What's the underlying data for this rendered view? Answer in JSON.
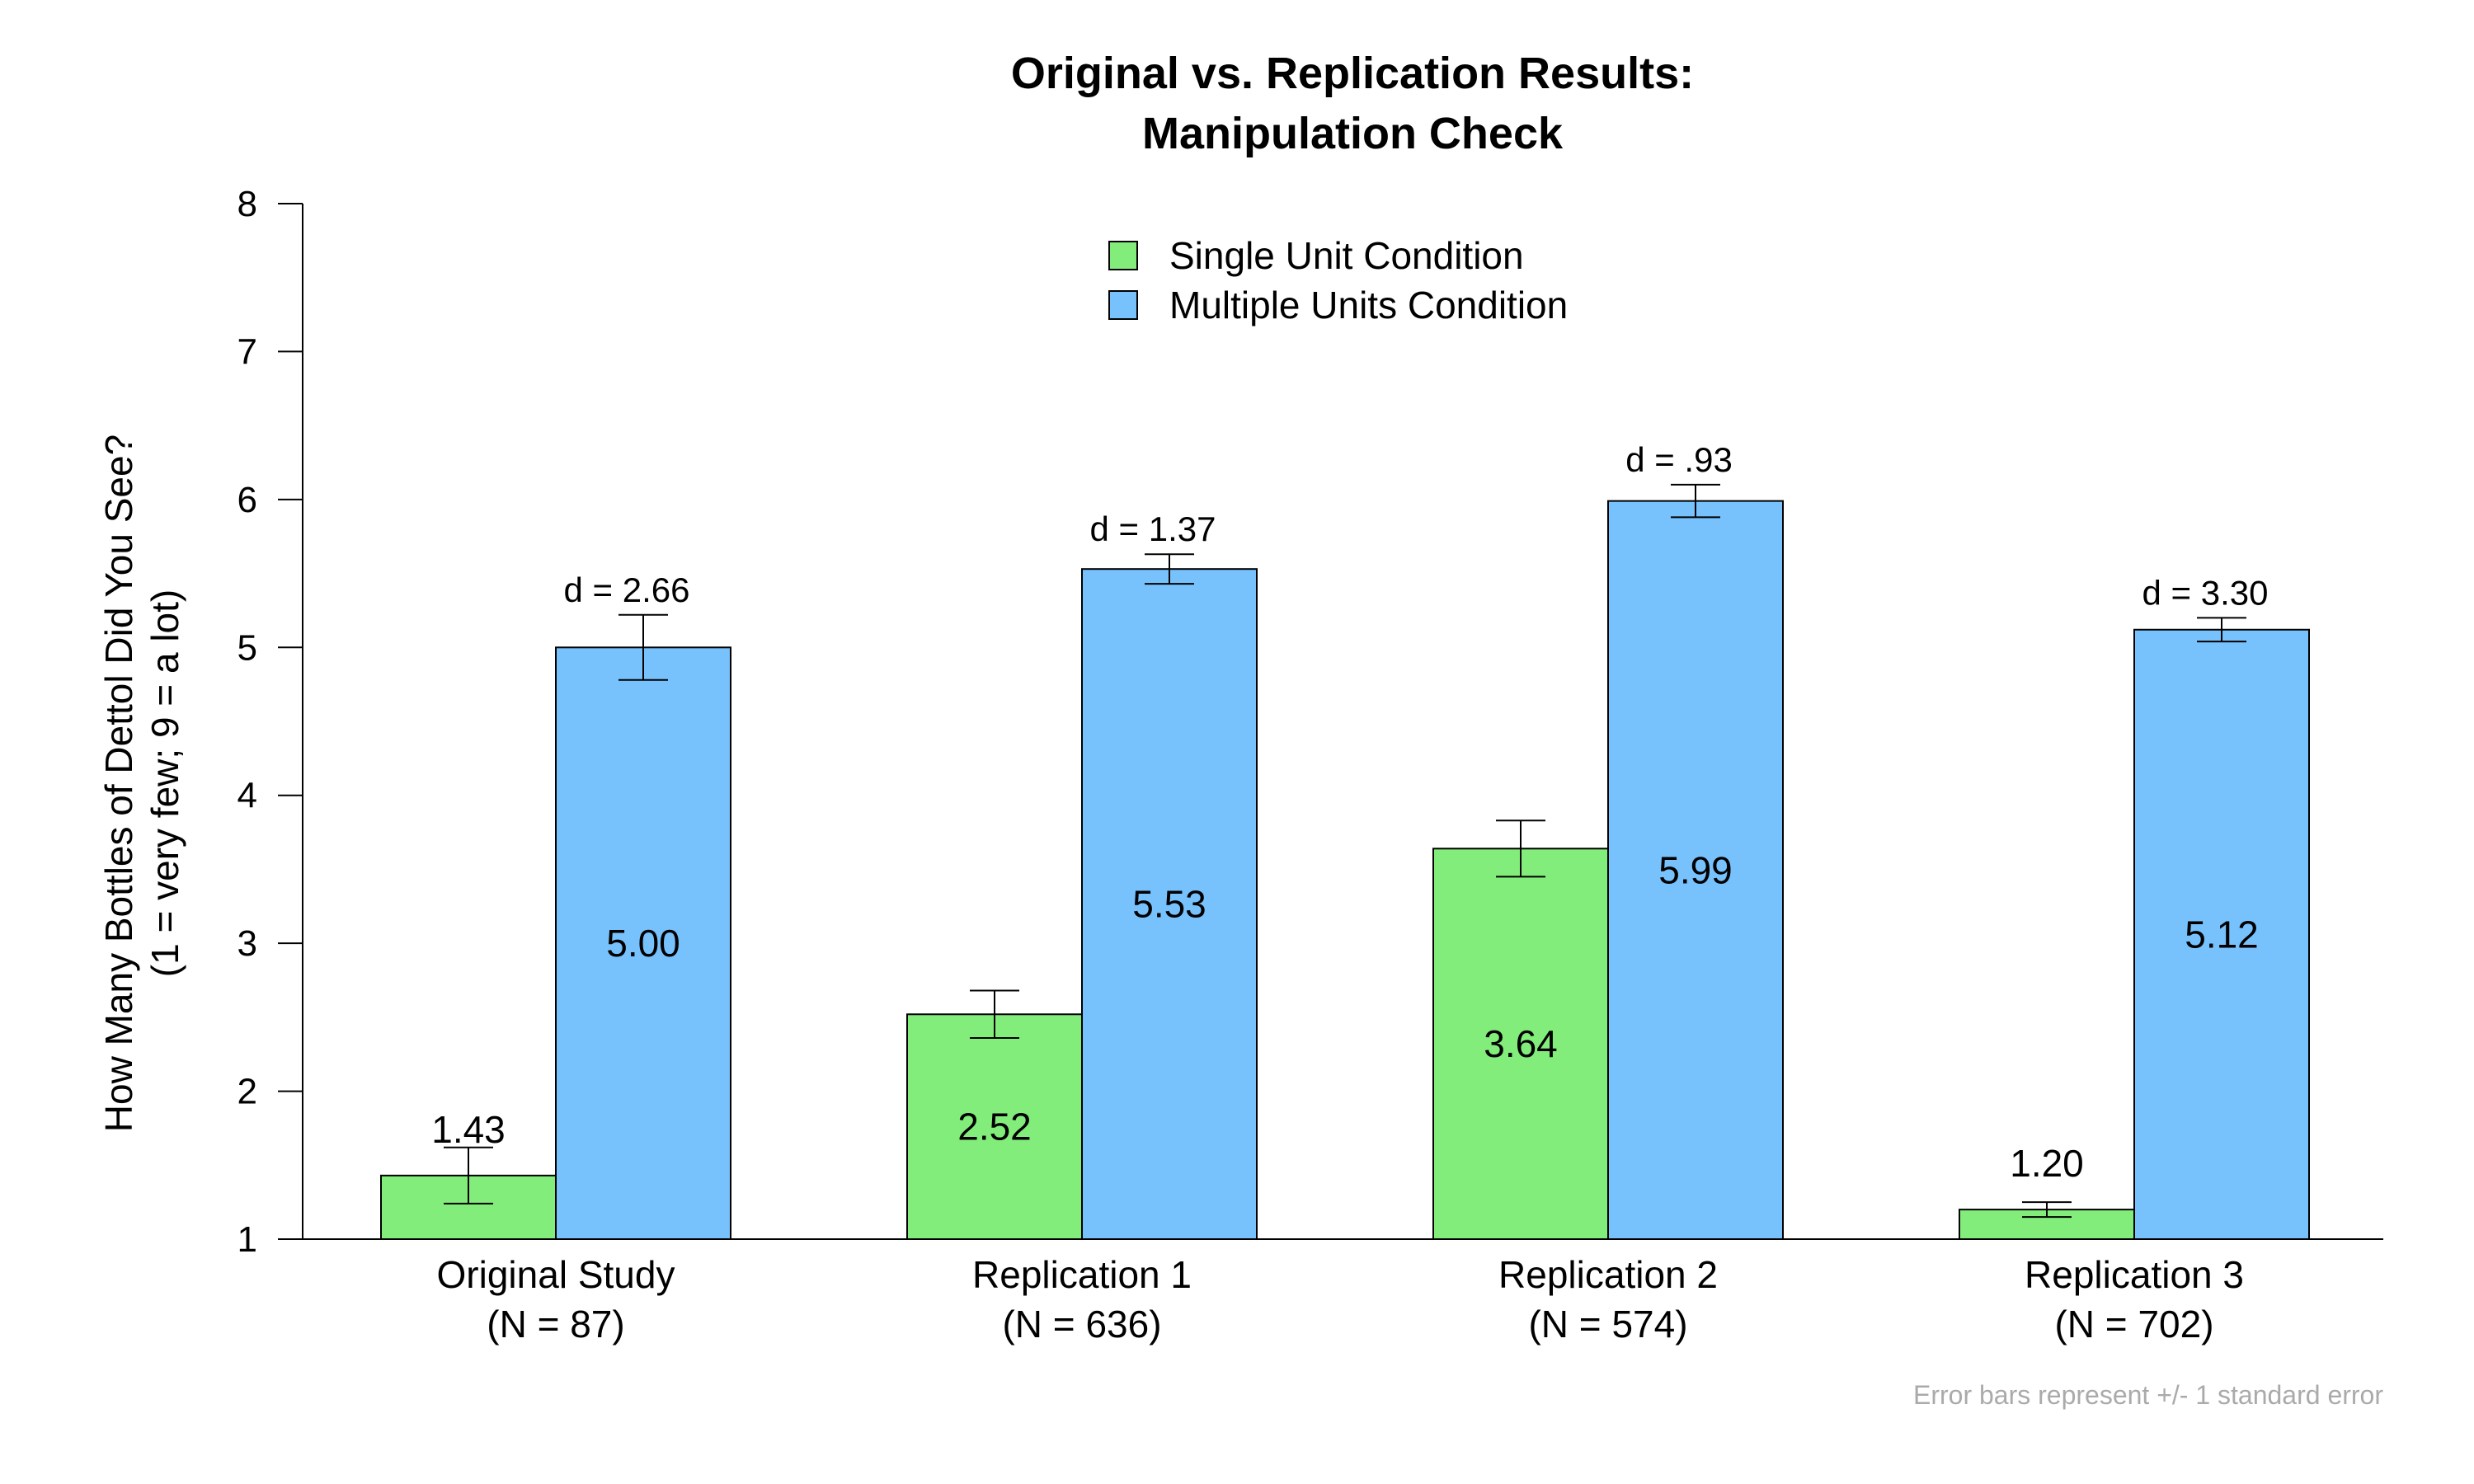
{
  "chart_data": {
    "type": "bar",
    "title": [
      "Original vs. Replication Results:",
      "Manipulation Check"
    ],
    "ylabel": [
      "How Many Bottles of Dettol Did You See?",
      "(1 = very few; 9 = a lot)"
    ],
    "xlabel": "",
    "ylim": [
      1,
      8
    ],
    "yticks": [
      1,
      2,
      3,
      4,
      5,
      6,
      7,
      8
    ],
    "grid": false,
    "legend_position": "top-center",
    "categories": [
      {
        "name": "Original Study",
        "n": "(N = 87)"
      },
      {
        "name": "Replication 1",
        "n": "(N = 636)"
      },
      {
        "name": "Replication 2",
        "n": "(N = 574)"
      },
      {
        "name": "Replication 3",
        "n": "(N = 702)"
      }
    ],
    "series": [
      {
        "name": "Single Unit Condition",
        "color": "#82ed7b",
        "values": [
          1.43,
          2.52,
          3.64,
          1.2
        ],
        "labels": [
          "1.43",
          "2.52",
          "3.64",
          "1.20"
        ],
        "se": [
          0.19,
          0.16,
          0.19,
          0.05
        ]
      },
      {
        "name": "Multiple Units Condition",
        "color": "#77c1fd",
        "values": [
          5.0,
          5.53,
          5.99,
          5.12
        ],
        "labels": [
          "5.00",
          "5.53",
          "5.99",
          "5.12"
        ],
        "se": [
          0.22,
          0.1,
          0.11,
          0.08
        ]
      }
    ],
    "effect_sizes": [
      "d =  2.66",
      "d =  1.37",
      "d =  .93",
      "d =  3.30"
    ],
    "note": "Error bars represent +/- 1 standard error"
  }
}
